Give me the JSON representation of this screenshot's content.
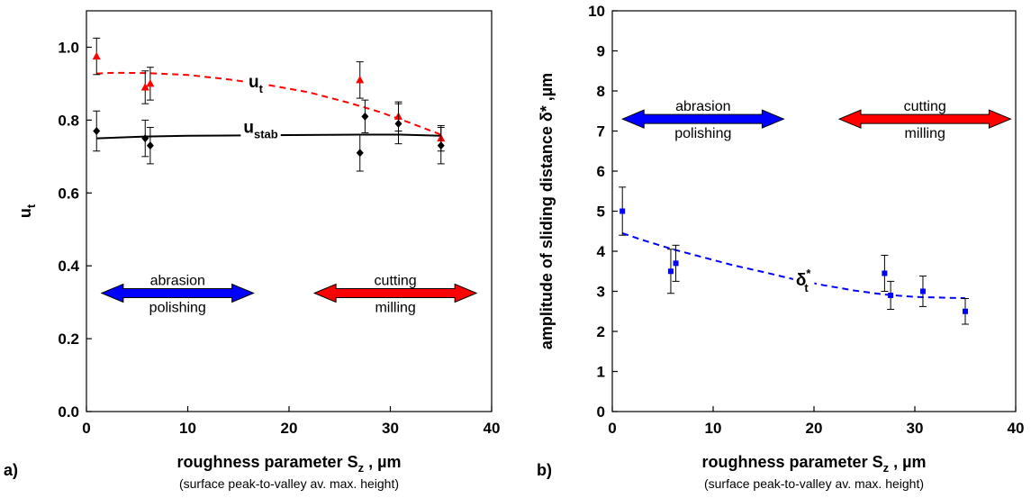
{
  "chart_data": [
    {
      "type": "scatter",
      "panel_label": "a)",
      "title": "",
      "xlabel": "roughness parameter S",
      "xlabel_sub": "z",
      "xlabel_unit": " , µm",
      "xlabel_note": "(surface peak-to-valley av. max. height)",
      "ylabel": "u",
      "ylabel_sub": "t",
      "xlim": [
        0,
        40
      ],
      "ylim": [
        0.0,
        1.1
      ],
      "x_ticks": [
        "0",
        "10",
        "20",
        "30",
        "40"
      ],
      "y_ticks": [
        "0.0",
        "0.2",
        "0.4",
        "0.6",
        "0.8",
        "1.0"
      ],
      "y_tick_values": [
        0.0,
        0.2,
        0.4,
        0.6,
        0.8,
        1.0
      ],
      "grid": false,
      "series": [
        {
          "name": "u_t",
          "color": "#ff0000",
          "marker": "triangle",
          "x": [
            1,
            5.8,
            6.3,
            27,
            30.8,
            35
          ],
          "y": [
            0.975,
            0.89,
            0.9,
            0.91,
            0.81,
            0.75
          ],
          "yerr": [
            0.05,
            0.045,
            0.045,
            0.05,
            0.04,
            0.035
          ]
        },
        {
          "name": "u_stab",
          "color": "#000000",
          "marker": "diamond",
          "x": [
            1,
            5.8,
            6.3,
            27,
            27.5,
            30.8,
            35
          ],
          "y": [
            0.77,
            0.75,
            0.73,
            0.71,
            0.81,
            0.79,
            0.73
          ],
          "yerr": [
            0.055,
            0.05,
            0.05,
            0.05,
            0.045,
            0.055,
            0.05
          ]
        }
      ],
      "fits": [
        {
          "series": "u_t",
          "style": "dashed",
          "color": "#ff0000",
          "x": [
            1,
            3,
            6,
            10,
            14,
            18,
            22,
            26,
            29,
            32,
            35
          ],
          "y": [
            0.928,
            0.93,
            0.929,
            0.924,
            0.912,
            0.896,
            0.876,
            0.847,
            0.822,
            0.792,
            0.76
          ]
        },
        {
          "series": "u_stab",
          "style": "solid",
          "color": "#000000",
          "x": [
            1,
            5.8,
            10,
            20,
            27,
            31,
            35
          ],
          "y": [
            0.75,
            0.755,
            0.757,
            0.759,
            0.76,
            0.76,
            0.757
          ]
        }
      ],
      "curve_labels": [
        {
          "text": "u",
          "sub": "t",
          "x": 16,
          "y": 0.89
        },
        {
          "text": "u",
          "sub": "stab",
          "x": 15.5,
          "y": 0.765
        }
      ],
      "annotations": [
        {
          "top": "abrasion",
          "bottom": "polishing",
          "color": "#0000ff",
          "x_from": 1.5,
          "x_to": 16.5,
          "y": 0.325
        },
        {
          "top": "cutting",
          "bottom": "milling",
          "color": "#ff0000",
          "x_from": 22.5,
          "x_to": 38.5,
          "y": 0.325
        }
      ]
    },
    {
      "type": "scatter",
      "panel_label": "b)",
      "title": "",
      "xlabel": "roughness parameter S",
      "xlabel_sub": "z",
      "xlabel_unit": " , µm",
      "xlabel_note": "(surface peak-to-valley av. max. height)",
      "ylabel": "amplitude of sliding distance δ* ,µm",
      "xlim": [
        0,
        40
      ],
      "ylim": [
        0,
        10
      ],
      "x_ticks": [
        "0",
        "10",
        "20",
        "30",
        "40"
      ],
      "y_ticks": [
        "0",
        "1",
        "2",
        "3",
        "4",
        "5",
        "6",
        "7",
        "8",
        "9",
        "10"
      ],
      "y_tick_values": [
        0,
        1,
        2,
        3,
        4,
        5,
        6,
        7,
        8,
        9,
        10
      ],
      "grid": false,
      "series": [
        {
          "name": "δ*_t",
          "color": "#0000ff",
          "marker": "square",
          "x": [
            1,
            5.8,
            6.3,
            27,
            27.6,
            30.8,
            35
          ],
          "y": [
            5.0,
            3.5,
            3.7,
            3.45,
            2.9,
            3.0,
            2.5
          ],
          "yerr": [
            0.6,
            0.55,
            0.45,
            0.45,
            0.35,
            0.38,
            0.32
          ]
        }
      ],
      "fits": [
        {
          "series": "δ*_t",
          "style": "dashed",
          "color": "#0000ff",
          "x": [
            1,
            3,
            6,
            9,
            12,
            15,
            18,
            21,
            24,
            27,
            30,
            33,
            35
          ],
          "y": [
            4.45,
            4.28,
            4.05,
            3.85,
            3.65,
            3.48,
            3.3,
            3.15,
            3.02,
            2.92,
            2.86,
            2.84,
            2.83
          ]
        }
      ],
      "curve_labels": [
        {
          "text": "δ",
          "sup": "*",
          "sub": "t",
          "x": 18.2,
          "y": 3.15
        }
      ],
      "annotations": [
        {
          "top": "abrasion",
          "bottom": "polishing",
          "color": "#0000ff",
          "x_from": 1,
          "x_to": 17,
          "y": 7.3
        },
        {
          "top": "cutting",
          "bottom": "milling",
          "color": "#ff0000",
          "x_from": 22.5,
          "x_to": 39.5,
          "y": 7.3
        }
      ]
    }
  ]
}
